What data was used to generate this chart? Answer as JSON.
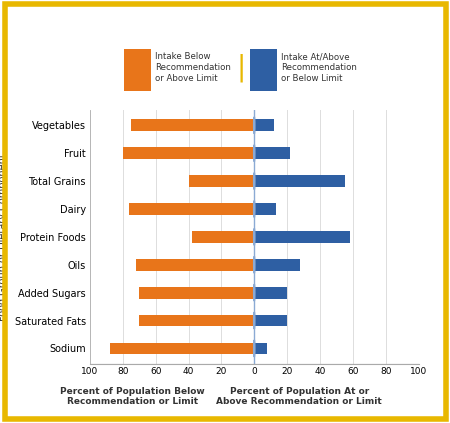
{
  "categories": [
    "Sodium",
    "Saturated Fats",
    "Added Sugars",
    "Oils",
    "Protein Foods",
    "Dairy",
    "Total Grains",
    "Fruit",
    "Vegetables"
  ],
  "orange_values": [
    88,
    70,
    70,
    72,
    38,
    76,
    40,
    80,
    75
  ],
  "blue_values": [
    8,
    20,
    20,
    28,
    58,
    13,
    55,
    22,
    12
  ],
  "orange_color": "#E8751A",
  "blue_color": "#2E5FA3",
  "background_color": "#FFFFFF",
  "outer_background": "#FFFFFF",
  "ylabel": "Food Group or Dietary Component",
  "xlabel_left": "Percent of Population Below\nRecommendation or Limit",
  "xlabel_right": "Percent of Population At or\nAbove Recommendation or Limit",
  "legend_orange": "Intake Below\nRecommendation\nor Above Limit",
  "legend_blue": "Intake At/Above\nRecommendation\nor Below Limit",
  "xlim": 100,
  "grid_color": "#DDDDDD",
  "border_color": "#E8B800",
  "border_width": 4,
  "center_line_color": "#8BAAD4",
  "circle_edge_color": "#8BAAD4"
}
